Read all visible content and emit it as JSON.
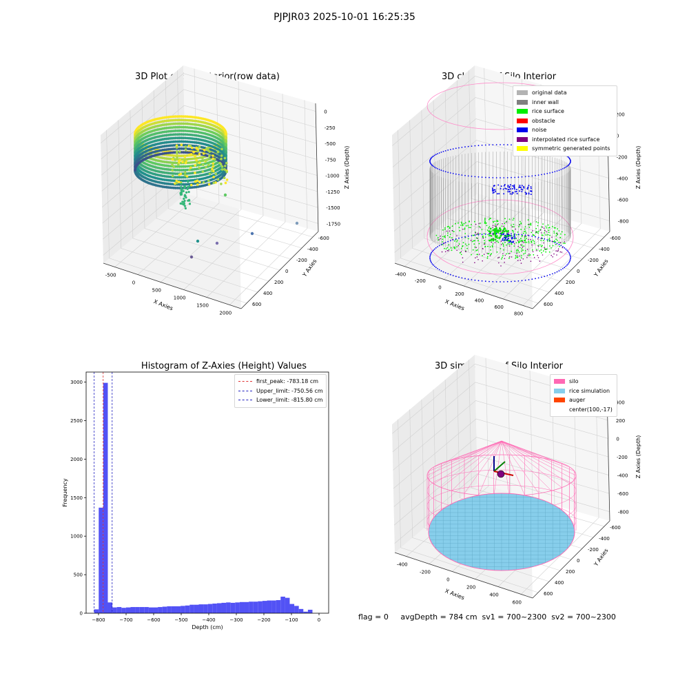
{
  "suptitle": "PJPJR03 2025-10-01 16:25:35",
  "colors": {
    "viridis_dark": "#440154",
    "viridis_mid": "#21918c",
    "viridis_light": "#5ec962",
    "viridis_yellow": "#fde725",
    "grid": "#d0d0d0",
    "pane": "#f2f2f2",
    "hist_bar": "#5252f5"
  },
  "chart_data": [
    {
      "type": "scatter",
      "title": "3D Plot of Silo Interior(row data)",
      "xlabel": "X Axies",
      "ylabel": "Y Axies",
      "zlabel": "Z Axies (Depth)",
      "x_ticks": [
        "-500",
        "0",
        "500",
        "1000",
        "1500",
        "2000"
      ],
      "y_ticks": [
        "-600",
        "-400",
        "-200",
        "0",
        "200",
        "400",
        "600"
      ],
      "z_ticks": [
        "0",
        "-250",
        "-500",
        "-750",
        "-1000",
        "-1250",
        "-1500",
        "-1750"
      ],
      "colormap": "viridis",
      "outliers": [
        {
          "x": 300,
          "y": -300,
          "z": -1250,
          "color": "#5ec962"
        },
        {
          "x": 2100,
          "y": -400,
          "z": -1750,
          "color": "#7d9bba"
        },
        {
          "x": 1700,
          "y": -500,
          "z": -1700,
          "color": "#4f76b0"
        },
        {
          "x": 1200,
          "y": -600,
          "z": -1650,
          "color": "#21918c"
        },
        {
          "x": 900,
          "y": -650,
          "z": -1550,
          "color": "#7a6fae"
        },
        {
          "x": 650,
          "y": -700,
          "z": -1550,
          "color": "#6b5b95"
        }
      ]
    },
    {
      "type": "scatter",
      "title": "3D classify of Silo Interior",
      "xlabel": "X Axies",
      "ylabel": "Y Axies",
      "zlabel": "Z Axies (Depth)",
      "x_ticks": [
        "-400",
        "-200",
        "0",
        "200",
        "400",
        "600",
        "800"
      ],
      "y_ticks": [
        "-600",
        "-400",
        "-200",
        "0",
        "200",
        "400",
        "600"
      ],
      "z_ticks": [
        "200",
        "0",
        "-200",
        "-400",
        "-600",
        "-800"
      ],
      "z_top_partial": "0",
      "legend": [
        {
          "label": "original data",
          "color": "#b3b3b3"
        },
        {
          "label": "inner wall",
          "color": "#808080"
        },
        {
          "label": "rice surface",
          "color": "#00ee00"
        },
        {
          "label": "obstacle",
          "color": "#ff0000"
        },
        {
          "label": "noise",
          "color": "#0000ee"
        },
        {
          "label": "interpolated rice surface",
          "color": "#800080"
        },
        {
          "label": "symmetric generated points",
          "color": "#ffff00"
        }
      ]
    },
    {
      "type": "bar",
      "title": "Histogram of Z-Axies (Height) Values",
      "xlabel": "Depth (cm)",
      "ylabel": "Frequency",
      "xlim": [
        -845,
        35
      ],
      "ylim": [
        0,
        3130
      ],
      "x_ticks": [
        -800,
        -700,
        -600,
        -500,
        -400,
        -300,
        -200,
        -100,
        0
      ],
      "y_ticks": [
        0,
        500,
        1000,
        1500,
        2000,
        2500,
        3000
      ],
      "bin_start": -815.8,
      "bin_width": 16.5,
      "values": [
        50,
        1370,
        2990,
        140,
        75,
        80,
        70,
        75,
        80,
        80,
        80,
        80,
        75,
        75,
        80,
        85,
        90,
        90,
        90,
        95,
        100,
        110,
        110,
        115,
        115,
        120,
        125,
        130,
        135,
        140,
        135,
        140,
        145,
        145,
        150,
        150,
        155,
        160,
        165,
        165,
        170,
        215,
        200,
        120,
        95,
        55,
        20,
        45
      ],
      "vlines": [
        {
          "x": -783.18,
          "label": "first_peak: -783.18 cm",
          "color": "#e03030"
        },
        {
          "x": -750.56,
          "label": "Upper_limit: -750.56 cm",
          "color": "#2020c0"
        },
        {
          "x": -815.8,
          "label": "Lower_limit: -815.80 cm",
          "color": "#2020c0"
        }
      ]
    },
    {
      "type": "scatter",
      "title": "3D simulation of Silo Interior",
      "xlabel": "X Axies",
      "ylabel": "Y Axies",
      "zlabel": "Z Axies (Depth)",
      "x_ticks": [
        "-400",
        "-200",
        "0",
        "200",
        "400",
        "600"
      ],
      "y_ticks": [
        "-600",
        "-400",
        "-200",
        "0",
        "200",
        "400",
        "600"
      ],
      "z_ticks": [
        "400",
        "200",
        "0",
        "-200",
        "-400",
        "-600",
        "-800"
      ],
      "legend": [
        {
          "label": "silo",
          "color": "#ff69b4"
        },
        {
          "label": "rice simulation",
          "color": "#87ceeb"
        },
        {
          "label": "auger",
          "color": "#ff4500"
        },
        {
          "label": "center(100,-17)",
          "color": "#ffffff"
        }
      ]
    }
  ],
  "footer": {
    "flag": "flag = 0",
    "avg": "avgDepth = 784 cm  sv1 = 700~2300  sv2 = 700~2300"
  }
}
